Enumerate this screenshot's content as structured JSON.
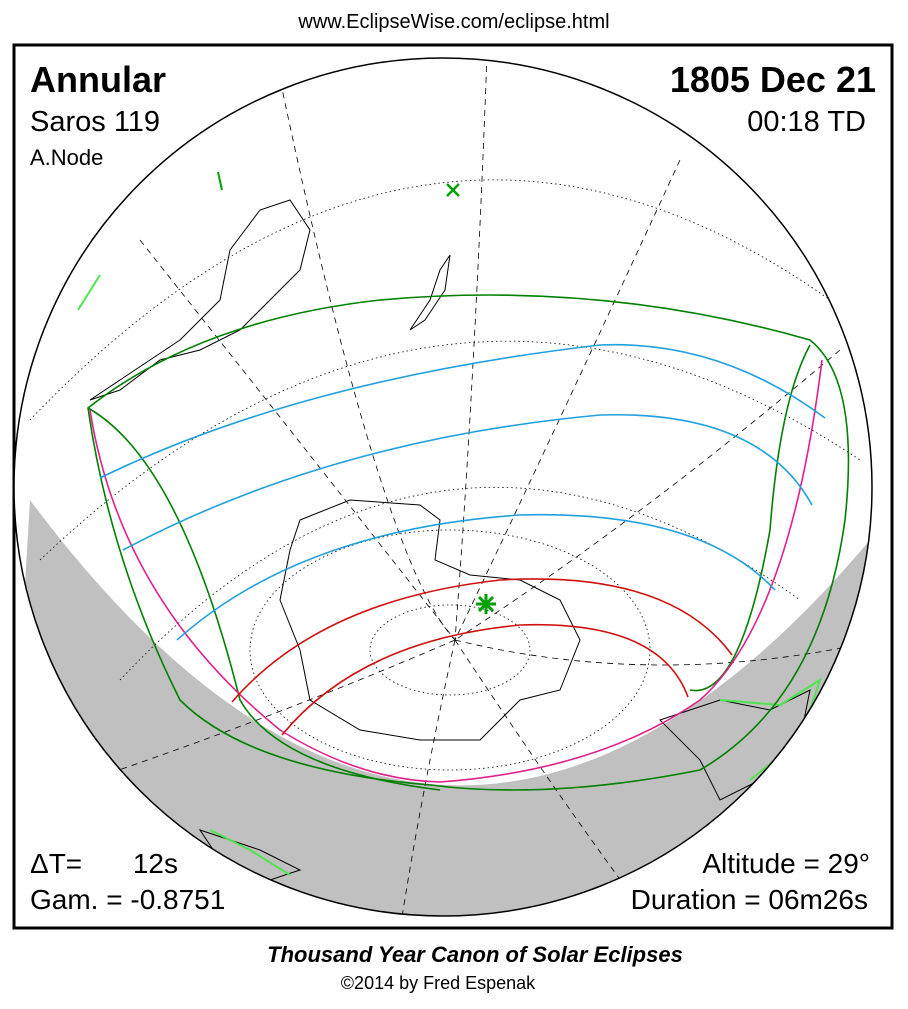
{
  "header": {
    "url": "www.EclipseWise.com/eclipse.html"
  },
  "eclipse": {
    "type": "Annular",
    "date": "1805 Dec 21",
    "saros": "Saros 119",
    "time": "00:18 TD",
    "node": "A.Node",
    "delta_t_label": "ΔT=",
    "delta_t_value": "12s",
    "gamma": "Gam. = -0.8751",
    "altitude": "Altitude = 29°",
    "duration": "Duration = 06m26s"
  },
  "footer": {
    "title": "Thousand Year Canon of Solar Eclipses",
    "copyright": "©2014 by Fred Espenak"
  }
}
